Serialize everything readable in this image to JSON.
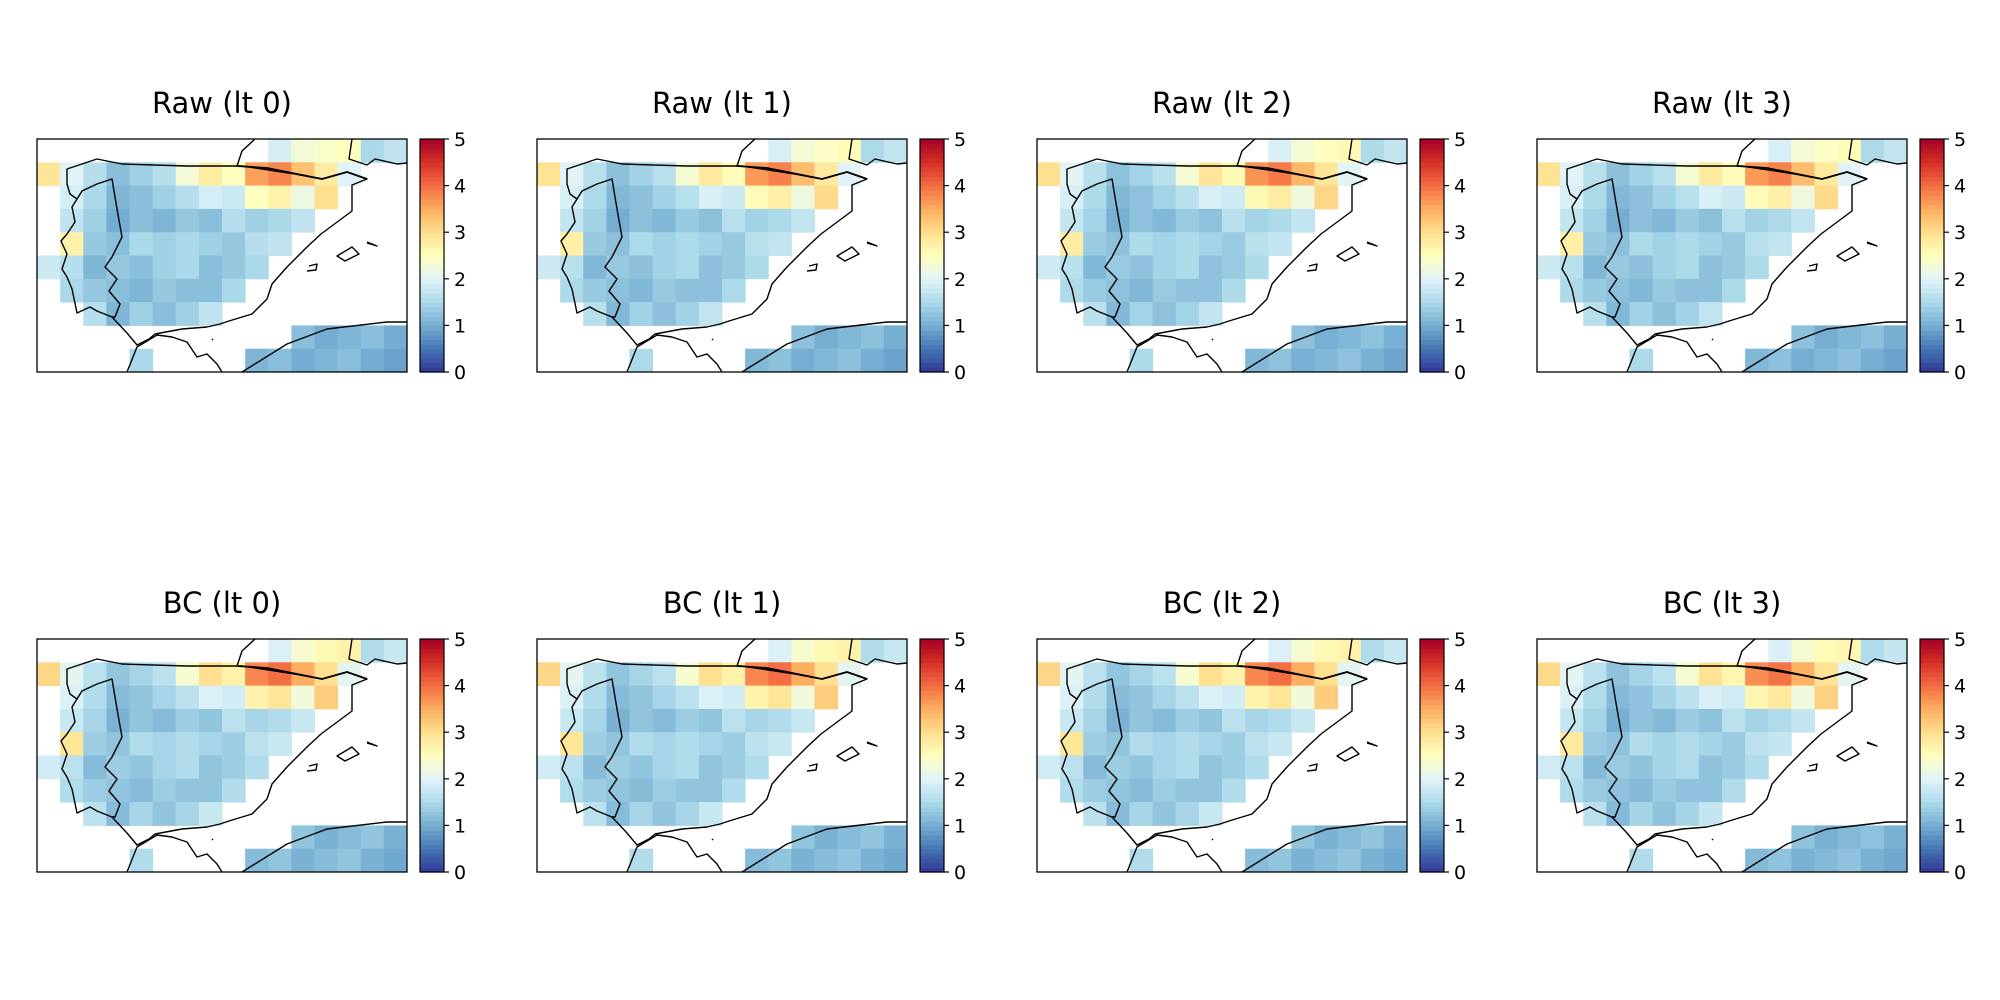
{
  "chart_data": {
    "type": "heatmap",
    "colorbar": {
      "min": 0,
      "max": 5,
      "ticks": [
        "0",
        "1",
        "2",
        "3",
        "4",
        "5"
      ],
      "colormap": "RdYlBu_r"
    },
    "grid": {
      "rows": 10,
      "cols": 16
    },
    "base_field": [
      [
        null,
        null,
        null,
        null,
        null,
        null,
        null,
        null,
        null,
        null,
        1.9,
        2.3,
        2.4,
        2.5,
        1.5,
        1.7
      ],
      [
        2.9,
        2.0,
        1.6,
        1.2,
        1.4,
        1.6,
        2.3,
        2.8,
        2.5,
        3.6,
        3.8,
        3.3,
        2.8,
        2.0,
        null,
        null
      ],
      [
        null,
        1.9,
        1.5,
        1.1,
        1.2,
        1.4,
        1.6,
        1.9,
        1.8,
        2.5,
        2.7,
        2.2,
        3.0,
        null,
        null,
        null
      ],
      [
        null,
        1.7,
        1.4,
        1.0,
        1.2,
        1.1,
        1.3,
        1.2,
        1.6,
        1.4,
        1.5,
        1.7,
        null,
        null,
        null,
        null
      ],
      [
        null,
        2.7,
        1.3,
        1.2,
        1.5,
        1.4,
        1.5,
        1.4,
        1.3,
        1.6,
        1.7,
        null,
        null,
        null,
        null,
        null
      ],
      [
        1.8,
        1.6,
        1.1,
        1.3,
        1.2,
        1.4,
        1.5,
        1.2,
        1.3,
        1.5,
        null,
        null,
        null,
        null,
        null,
        null
      ],
      [
        null,
        1.5,
        1.3,
        1.2,
        1.1,
        1.3,
        1.2,
        1.2,
        1.5,
        null,
        null,
        null,
        null,
        null,
        null,
        null
      ],
      [
        null,
        null,
        1.6,
        1.1,
        1.4,
        1.2,
        1.4,
        1.7,
        null,
        null,
        null,
        null,
        null,
        null,
        null,
        null
      ],
      [
        null,
        null,
        null,
        null,
        null,
        null,
        null,
        null,
        null,
        null,
        null,
        1.2,
        1.0,
        1.1,
        1.2,
        1.0
      ],
      [
        null,
        null,
        null,
        null,
        1.5,
        null,
        null,
        null,
        null,
        1.1,
        1.2,
        1.0,
        1.1,
        1.2,
        1.0,
        0.9
      ]
    ],
    "panels": [
      {
        "title": "Raw (lt 0)",
        "offset": 0.0
      },
      {
        "title": "Raw (lt 1)",
        "offset": 0.05
      },
      {
        "title": "Raw (lt 2)",
        "offset": 0.1
      },
      {
        "title": "Raw (lt 3)",
        "offset": 0.05
      },
      {
        "title": "BC (lt 0)",
        "offset": 0.2
      },
      {
        "title": "BC (lt 1)",
        "offset": 0.2
      },
      {
        "title": "BC (lt 2)",
        "offset": 0.2
      },
      {
        "title": "BC (lt 3)",
        "offset": 0.15
      }
    ]
  }
}
